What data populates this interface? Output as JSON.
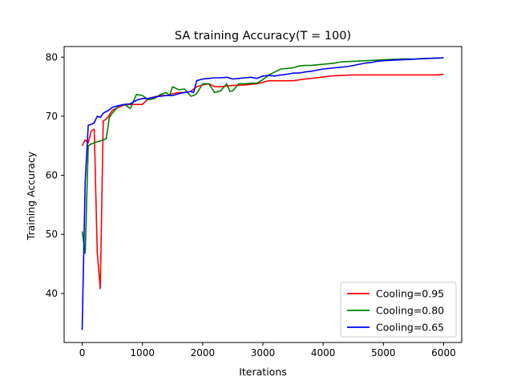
{
  "chart_data": {
    "type": "line",
    "title": "SA training Accuracy(T = 100)",
    "xlabel": "Iterations",
    "ylabel": "Training Accuracy",
    "xlim": [
      -300,
      6300
    ],
    "ylim": [
      31.7,
      81.8
    ],
    "xticks": [
      0,
      1000,
      2000,
      3000,
      4000,
      5000,
      6000
    ],
    "yticks": [
      40,
      50,
      60,
      70,
      80
    ],
    "grid": false,
    "legend_position": "lower right",
    "series": [
      {
        "name": "Cooling=0.95",
        "color": "#ff0000",
        "x": [
          0,
          50,
          100,
          150,
          200,
          250,
          300,
          350,
          400,
          450,
          500,
          600,
          700,
          800,
          900,
          1000,
          1100,
          1200,
          1300,
          1400,
          1500,
          1600,
          1700,
          1800,
          1900,
          2000,
          2100,
          2200,
          2300,
          2500,
          2700,
          2900,
          3100,
          3300,
          3500,
          3700,
          3900,
          4100,
          4300,
          4500,
          4700,
          4900,
          5100,
          5300,
          5500,
          5700,
          5900,
          6000
        ],
        "y": [
          65.0,
          66.0,
          65.5,
          67.5,
          67.8,
          47.0,
          40.8,
          69.2,
          69.5,
          70.2,
          71.0,
          71.5,
          71.9,
          72.0,
          72.0,
          72.0,
          73.0,
          73.3,
          73.5,
          73.5,
          73.8,
          74.0,
          74.0,
          74.2,
          75.0,
          75.3,
          75.5,
          75.0,
          75.0,
          75.2,
          75.3,
          75.5,
          76.0,
          76.0,
          76.0,
          76.3,
          76.5,
          76.8,
          76.9,
          77.0,
          77.0,
          77.0,
          77.0,
          77.0,
          77.0,
          77.0,
          77.0,
          77.1
        ]
      },
      {
        "name": "Cooling=0.80",
        "color": "#008000",
        "x": [
          0,
          50,
          100,
          150,
          200,
          250,
          300,
          350,
          400,
          450,
          500,
          600,
          700,
          800,
          900,
          1000,
          1100,
          1200,
          1300,
          1400,
          1450,
          1500,
          1600,
          1700,
          1800,
          1850,
          1900,
          2000,
          2100,
          2200,
          2300,
          2400,
          2450,
          2500,
          2600,
          2700,
          2800,
          2900,
          3000,
          3100,
          3200,
          3300,
          3400,
          3500,
          3600,
          3700,
          3800,
          3900,
          4000,
          4100,
          4200,
          4300,
          4500,
          4700,
          4900,
          5100,
          5300,
          5500,
          5700,
          5900,
          6000
        ],
        "y": [
          50.5,
          46.8,
          65.0,
          65.3,
          65.5,
          65.7,
          65.8,
          66.0,
          66.2,
          69.8,
          70.5,
          71.7,
          72.0,
          71.3,
          73.7,
          73.5,
          72.8,
          73.0,
          73.7,
          74.0,
          73.5,
          75.0,
          74.5,
          74.6,
          73.4,
          73.5,
          73.8,
          75.5,
          75.5,
          74.0,
          74.3,
          75.5,
          74.2,
          74.3,
          75.5,
          75.5,
          75.6,
          75.6,
          76.2,
          77.0,
          77.5,
          78.0,
          78.1,
          78.2,
          78.5,
          78.6,
          78.6,
          78.7,
          78.8,
          78.9,
          79.0,
          79.2,
          79.3,
          79.4,
          79.5,
          79.6,
          79.7,
          79.7,
          79.8,
          79.8,
          79.9
        ]
      },
      {
        "name": "Cooling=0.65",
        "color": "#0000ff",
        "x": [
          0,
          50,
          100,
          150,
          200,
          250,
          300,
          350,
          400,
          450,
          500,
          600,
          700,
          800,
          900,
          1000,
          1100,
          1200,
          1300,
          1400,
          1500,
          1600,
          1700,
          1800,
          1850,
          1900,
          2000,
          2100,
          2200,
          2300,
          2400,
          2500,
          2600,
          2700,
          2800,
          2900,
          3000,
          3100,
          3200,
          3300,
          3400,
          3500,
          3600,
          3700,
          3800,
          3900,
          4000,
          4100,
          4200,
          4300,
          4400,
          4500,
          4600,
          4700,
          4800,
          4900,
          5000,
          5200,
          5400,
          5600,
          5800,
          6000
        ],
        "y": [
          33.8,
          59.0,
          68.5,
          68.6,
          68.9,
          70.0,
          69.8,
          70.5,
          70.8,
          71.1,
          71.5,
          71.8,
          72.0,
          72.1,
          72.7,
          73.0,
          73.0,
          73.2,
          73.4,
          73.5,
          73.5,
          73.8,
          74.0,
          74.2,
          74.0,
          76.0,
          76.3,
          76.4,
          76.5,
          76.5,
          76.6,
          76.3,
          76.4,
          76.5,
          76.6,
          76.4,
          76.8,
          76.9,
          76.8,
          77.0,
          77.1,
          77.3,
          77.3,
          77.5,
          77.6,
          77.8,
          78.0,
          78.1,
          78.2,
          78.3,
          78.4,
          78.6,
          78.8,
          79.0,
          79.1,
          79.3,
          79.4,
          79.5,
          79.6,
          79.7,
          79.8,
          79.9
        ]
      }
    ]
  }
}
